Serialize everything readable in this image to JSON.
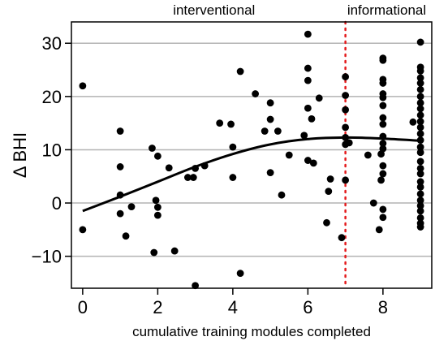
{
  "chart_data": {
    "type": "scatter",
    "xlabel": "cumulative training modules completed",
    "ylabel": "Δ BHI",
    "xlim": [
      -0.3,
      9.3
    ],
    "ylim": [
      -16,
      34
    ],
    "x_ticks": [
      0,
      2,
      4,
      6,
      8
    ],
    "y_ticks": [
      -10,
      0,
      10,
      20,
      30
    ],
    "y_tick_labels": [
      "−10",
      "0",
      "10",
      "20",
      "30"
    ],
    "grid": "horizontal",
    "annotations": [
      {
        "text": "interventional",
        "x": 3.5
      },
      {
        "text": "informational",
        "x": 8.1
      }
    ],
    "threshold": {
      "x": 7,
      "color": "#e41a1c",
      "style": "dotted"
    },
    "colors": {
      "points": "#000000",
      "fit": "#000000",
      "grid": "#b3b3b3",
      "threshold": "#e41a1c"
    },
    "fit_curve": {
      "x": [
        0,
        1,
        2,
        3,
        4,
        5,
        6,
        7,
        8,
        9
      ],
      "y": [
        -1.5,
        1.2,
        4.0,
        6.8,
        9.2,
        11.0,
        12.0,
        12.3,
        12.1,
        11.7
      ]
    },
    "points": [
      [
        0,
        22
      ],
      [
        0,
        -5
      ],
      [
        1,
        13.5
      ],
      [
        1,
        6.8
      ],
      [
        1,
        1.5
      ],
      [
        1,
        -2
      ],
      [
        1.15,
        -6.2
      ],
      [
        1.3,
        -0.7
      ],
      [
        1.85,
        10.3
      ],
      [
        1.9,
        -9.3
      ],
      [
        1.95,
        0.5
      ],
      [
        2.0,
        -0.8
      ],
      [
        2.0,
        -2.3
      ],
      [
        2.0,
        8.8
      ],
      [
        2.3,
        6.6
      ],
      [
        2.45,
        -9.0
      ],
      [
        2.8,
        4.8
      ],
      [
        2.95,
        4.8
      ],
      [
        3.0,
        6.5
      ],
      [
        3.0,
        -15.5
      ],
      [
        3.25,
        7.0
      ],
      [
        3.65,
        15.0
      ],
      [
        3.95,
        14.8
      ],
      [
        4.0,
        10.5
      ],
      [
        4.0,
        4.8
      ],
      [
        4.2,
        24.7
      ],
      [
        4.2,
        -13.2
      ],
      [
        4.6,
        20.5
      ],
      [
        4.85,
        13.5
      ],
      [
        5.0,
        18.8
      ],
      [
        5.0,
        15.7
      ],
      [
        5.0,
        5.7
      ],
      [
        5.2,
        13.5
      ],
      [
        5.3,
        1.5
      ],
      [
        5.5,
        9.0
      ],
      [
        5.9,
        12.7
      ],
      [
        6.0,
        31.7
      ],
      [
        6.0,
        25.3
      ],
      [
        6.0,
        23.0
      ],
      [
        6.0,
        17.8
      ],
      [
        6.0,
        8.0
      ],
      [
        6.1,
        15.8
      ],
      [
        6.15,
        7.5
      ],
      [
        6.3,
        19.7
      ],
      [
        6.5,
        -3.7
      ],
      [
        6.55,
        2.2
      ],
      [
        6.6,
        4.5
      ],
      [
        6.9,
        -6.5
      ],
      [
        7.0,
        23.7
      ],
      [
        7.0,
        20.2
      ],
      [
        7.0,
        17.5
      ],
      [
        7.0,
        14.2
      ],
      [
        7.0,
        12.3
      ],
      [
        7.0,
        11.0
      ],
      [
        7.0,
        4.3
      ],
      [
        7.1,
        11.3
      ],
      [
        7.6,
        9.0
      ],
      [
        7.75,
        0
      ],
      [
        7.9,
        -5.0
      ],
      [
        7.95,
        9.2
      ],
      [
        7.95,
        4.3
      ],
      [
        8.0,
        27.2
      ],
      [
        8.0,
        26.8
      ],
      [
        8.0,
        23.2
      ],
      [
        8.0,
        22.5
      ],
      [
        8.0,
        20.5
      ],
      [
        8.0,
        19.8
      ],
      [
        8.0,
        18.3
      ],
      [
        8.0,
        16.0
      ],
      [
        8.0,
        14.8
      ],
      [
        8.0,
        12.5
      ],
      [
        8.0,
        11.2
      ],
      [
        8.0,
        10.2
      ],
      [
        8.0,
        7.0
      ],
      [
        8.0,
        5.5
      ],
      [
        8.0,
        -1.2
      ],
      [
        8.0,
        -2.7
      ],
      [
        8.8,
        15.2
      ],
      [
        9.0,
        30.2
      ],
      [
        9.0,
        25.5
      ],
      [
        9.0,
        24.8
      ],
      [
        9.0,
        23.5
      ],
      [
        9.0,
        22.5
      ],
      [
        9.0,
        21.3
      ],
      [
        9.0,
        20.0
      ],
      [
        9.0,
        18.8
      ],
      [
        9.0,
        17.7
      ],
      [
        9.0,
        16.5
      ],
      [
        9.0,
        15.3
      ],
      [
        9.0,
        14.2
      ],
      [
        9.0,
        13.0
      ],
      [
        9.0,
        11.8
      ],
      [
        9.0,
        10.5
      ],
      [
        9.0,
        9.5
      ],
      [
        9.0,
        7.8
      ],
      [
        9.0,
        6.5
      ],
      [
        9.0,
        5.5
      ],
      [
        9.0,
        4.0
      ],
      [
        9.0,
        3.0
      ],
      [
        9.0,
        1.7
      ],
      [
        9.0,
        0.5
      ],
      [
        9.0,
        -0.5
      ],
      [
        9.0,
        -1.5
      ],
      [
        9.0,
        -2.8
      ],
      [
        9.0,
        -3.8
      ],
      [
        9.0,
        -4.5
      ]
    ]
  }
}
